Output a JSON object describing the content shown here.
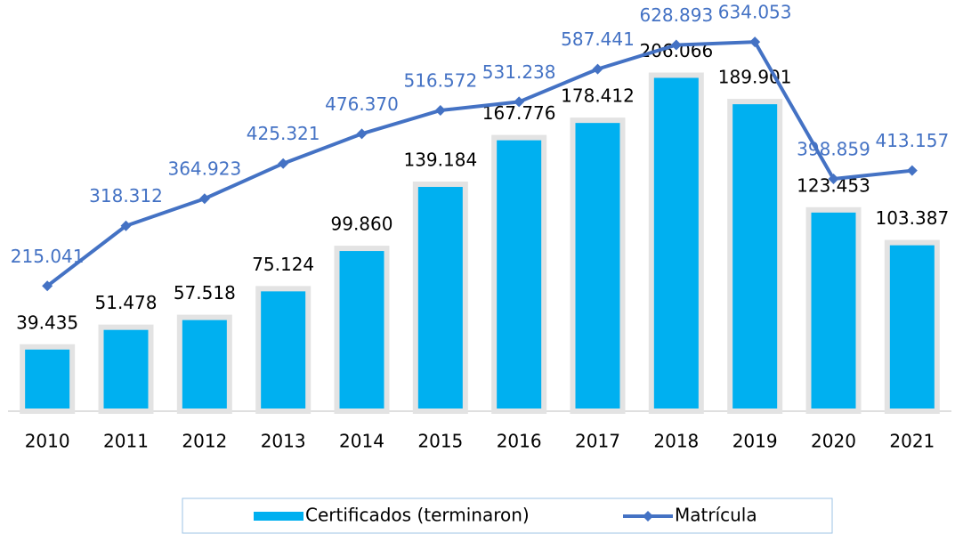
{
  "chart_data": {
    "type": "bar_line",
    "categories": [
      "2010",
      "2011",
      "2012",
      "2013",
      "2014",
      "2015",
      "2016",
      "2017",
      "2018",
      "2019",
      "2020",
      "2021"
    ],
    "series": [
      {
        "name": "Certificados (terminaron)",
        "color": "#00b0f0",
        "type": "bar",
        "values": [
          39435,
          51478,
          57518,
          75124,
          99860,
          139184,
          167776,
          178412,
          206066,
          189901,
          123453,
          103387
        ],
        "value_labels": [
          "39.435",
          "51.478",
          "57.518",
          "75.124",
          "99.860",
          "139.184",
          "167.776",
          "178.412",
          "206.066",
          "189.901",
          "123.453",
          "103.387"
        ]
      },
      {
        "name": "Matrícula",
        "color": "#4472c4",
        "type": "line",
        "axis": "y2",
        "values": [
          215041,
          318312,
          364923,
          425321,
          476370,
          516572,
          531238,
          587441,
          628893,
          634053,
          398859,
          413157
        ],
        "value_labels": [
          "215.041",
          "318.312",
          "364.923",
          "425.321",
          "476.370",
          "516.572",
          "531.238",
          "587.441",
          "628.893",
          "634.053",
          "398.859",
          "413.157"
        ]
      }
    ],
    "ylim": [
      0,
      250000
    ],
    "y2lim": [
      0,
      700000
    ],
    "legend": "bottom"
  }
}
